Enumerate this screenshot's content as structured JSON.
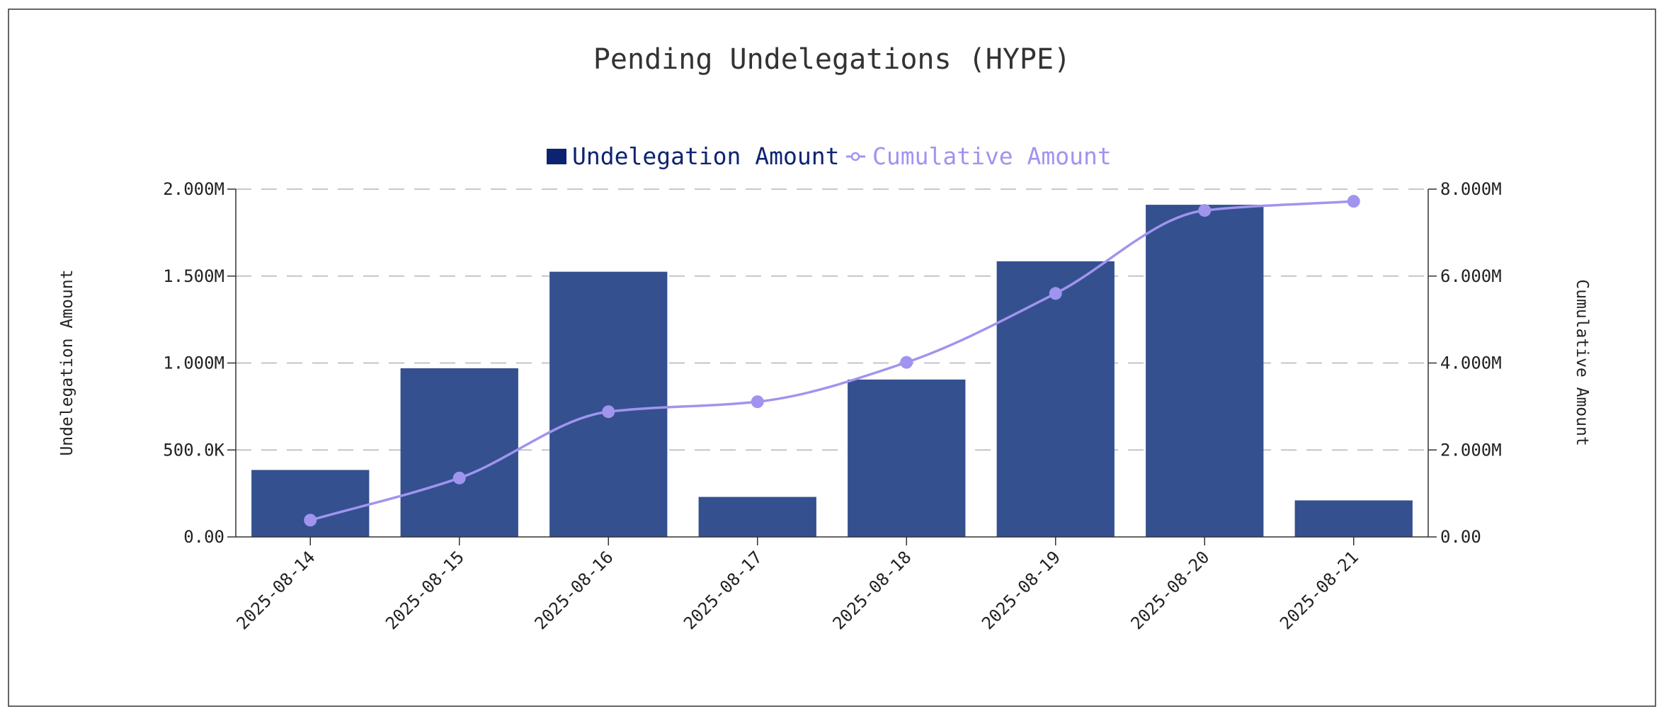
{
  "chart_data": {
    "type": "bar",
    "title": "Pending Undelegations (HYPE)",
    "categories": [
      "2025-08-14",
      "2025-08-15",
      "2025-08-16",
      "2025-08-17",
      "2025-08-18",
      "2025-08-19",
      "2025-08-20",
      "2025-08-21"
    ],
    "series": [
      {
        "name": "Undelegation Amount",
        "type": "bar",
        "axis": "left",
        "color": "#34508f",
        "legend_color": "#0c2470",
        "values": [
          385000,
          970000,
          1525000,
          230000,
          905000,
          1585000,
          1910000,
          210000
        ]
      },
      {
        "name": "Cumulative Amount",
        "type": "line",
        "axis": "right",
        "color": "#a094ef",
        "values": [
          385000,
          1355000,
          2880000,
          3110000,
          4015000,
          5600000,
          7510000,
          7720000
        ]
      }
    ],
    "y_left": {
      "label": "Undelegation Amount",
      "range": [
        0,
        2000000
      ],
      "ticks": [
        "0.00",
        "500.0K",
        "1.000M",
        "1.500M",
        "2.000M"
      ]
    },
    "y_right": {
      "label": "Cumulative Amount",
      "range": [
        0,
        8000000
      ],
      "ticks": [
        "0.00",
        "2.000M",
        "4.000M",
        "6.000M",
        "8.000M"
      ]
    },
    "grid": true,
    "legend_position": "top-center"
  }
}
